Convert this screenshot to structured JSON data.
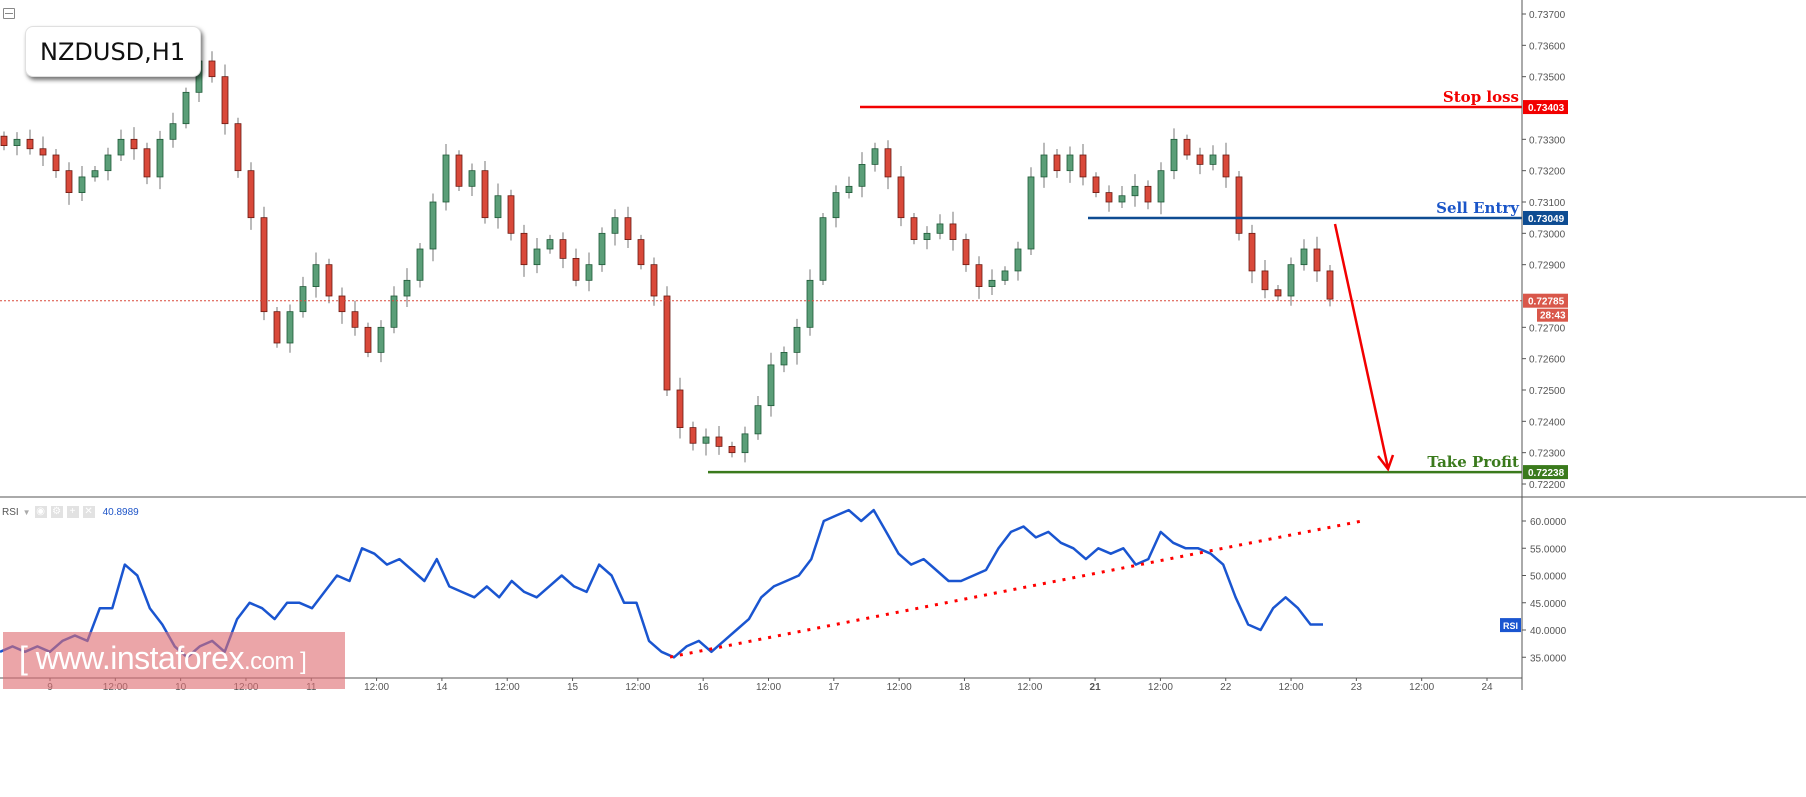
{
  "header": {
    "symbol": "NZDUSD,H1"
  },
  "price_axis": {
    "ticks": [
      "0.73700",
      "0.73600",
      "0.73500",
      "0.73300",
      "0.73200",
      "0.73100",
      "0.73000",
      "0.72900",
      "0.72700",
      "0.72600",
      "0.72500",
      "0.72400",
      "0.72300",
      "0.72200"
    ],
    "current_price": "0.72785",
    "countdown": "28:43"
  },
  "levels": [
    {
      "name": "stop-loss",
      "label": "Stop loss",
      "value": "0.73403",
      "color": "#f20000"
    },
    {
      "name": "sell-entry",
      "label": "Sell Entry",
      "value": "0.73049",
      "color": "#0e4c92"
    },
    {
      "name": "take-profit",
      "label": "Take Profit",
      "value": "0.72238",
      "color": "#3a7a1c"
    }
  ],
  "rsi": {
    "label": "RSI",
    "value": "40.8989",
    "badge": "RSI",
    "ticks": [
      "60.0000",
      "55.0000",
      "50.0000",
      "45.0000",
      "40.0000",
      "35.0000"
    ],
    "color": "#1a55d0"
  },
  "time_axis": [
    "9",
    "12:00",
    "10",
    "12:00",
    "11",
    "12:00",
    "14",
    "12:00",
    "15",
    "12:00",
    "16",
    "12:00",
    "17",
    "12:00",
    "18",
    "12:00",
    "21",
    "12:00",
    "22",
    "12:00",
    "23",
    "12:00",
    "24"
  ],
  "watermark": {
    "main": "[ www.instaforex",
    "suffix": ".com ]"
  },
  "colors": {
    "bull": "#5b9e78",
    "bull_border": "#1f5a38",
    "bear": "#d9493a",
    "bear_border": "#6a1a12",
    "grid_text": "#555555",
    "current_line": "#d9493a"
  },
  "chart_data": [
    {
      "type": "candlestick",
      "title": "NZDUSD,H1",
      "ylim": [
        0.7215,
        0.7375
      ],
      "x_labels": [
        "9",
        "12:00",
        "10",
        "12:00",
        "11",
        "12:00",
        "14",
        "12:00",
        "15",
        "12:00",
        "16",
        "12:00",
        "17",
        "12:00",
        "18",
        "12:00",
        "21",
        "12:00",
        "22",
        "12:00",
        "23",
        "12:00",
        "24"
      ],
      "close_path": [
        0.7328,
        0.733,
        0.7327,
        0.7325,
        0.732,
        0.7313,
        0.7318,
        0.732,
        0.7325,
        0.733,
        0.7327,
        0.7318,
        0.733,
        0.7335,
        0.7345,
        0.7355,
        0.735,
        0.7335,
        0.732,
        0.7305,
        0.7275,
        0.7265,
        0.7275,
        0.7283,
        0.729,
        0.728,
        0.7275,
        0.727,
        0.7262,
        0.727,
        0.728,
        0.7285,
        0.7295,
        0.731,
        0.7325,
        0.7315,
        0.732,
        0.7305,
        0.7312,
        0.73,
        0.729,
        0.7295,
        0.7298,
        0.7292,
        0.7285,
        0.729,
        0.73,
        0.7305,
        0.7298,
        0.729,
        0.728,
        0.725,
        0.7238,
        0.7233,
        0.7235,
        0.7232,
        0.723,
        0.7236,
        0.7245,
        0.7258,
        0.7262,
        0.727,
        0.7285,
        0.7305,
        0.7313,
        0.7315,
        0.7322,
        0.7327,
        0.7318,
        0.7305,
        0.7298,
        0.73,
        0.7303,
        0.7298,
        0.729,
        0.7283,
        0.7285,
        0.7288,
        0.7295,
        0.7318,
        0.7325,
        0.732,
        0.7325,
        0.7318,
        0.7313,
        0.731,
        0.7312,
        0.7315,
        0.731,
        0.732,
        0.733,
        0.7325,
        0.7322,
        0.7325,
        0.7318,
        0.73,
        0.7288,
        0.7282,
        0.728,
        0.729,
        0.7295,
        0.7288,
        0.7279
      ],
      "levels": {
        "stop_loss": 0.73403,
        "sell_entry": 0.73049,
        "take_profit": 0.72238,
        "current": 0.72785
      },
      "annotations": [
        "Stop loss 0.73403",
        "Sell Entry 0.73049",
        "Take Profit 0.72238",
        "Arrow from sell entry down to take profit"
      ]
    },
    {
      "type": "line",
      "title": "RSI",
      "ylim": [
        31,
        63
      ],
      "current_value": 40.8989,
      "values": [
        36,
        37,
        36,
        37,
        36,
        38,
        39,
        38,
        44,
        44,
        52,
        50,
        44,
        41,
        37,
        35,
        37,
        38,
        36,
        42,
        45,
        44,
        42,
        45,
        45,
        44,
        47,
        50,
        49,
        55,
        54,
        52,
        53,
        51,
        49,
        53,
        48,
        47,
        46,
        48,
        46,
        49,
        47,
        46,
        48,
        50,
        48,
        47,
        52,
        50,
        45,
        45,
        38,
        36,
        35,
        37,
        38,
        36,
        38,
        40,
        42,
        46,
        48,
        49,
        50,
        53,
        60,
        61,
        62,
        60,
        62,
        58,
        54,
        52,
        53,
        51,
        49,
        49,
        50,
        51,
        55,
        58,
        59,
        57,
        58,
        56,
        55,
        53,
        55,
        54,
        55,
        52,
        53,
        58,
        56,
        55,
        55,
        54,
        52,
        46,
        41,
        40,
        44,
        46,
        44,
        41,
        41
      ],
      "trendline": {
        "from": [
          0.43,
          35
        ],
        "to": [
          0.89,
          60
        ]
      },
      "yticks": [
        60,
        55,
        50,
        45,
        40,
        35
      ]
    }
  ]
}
